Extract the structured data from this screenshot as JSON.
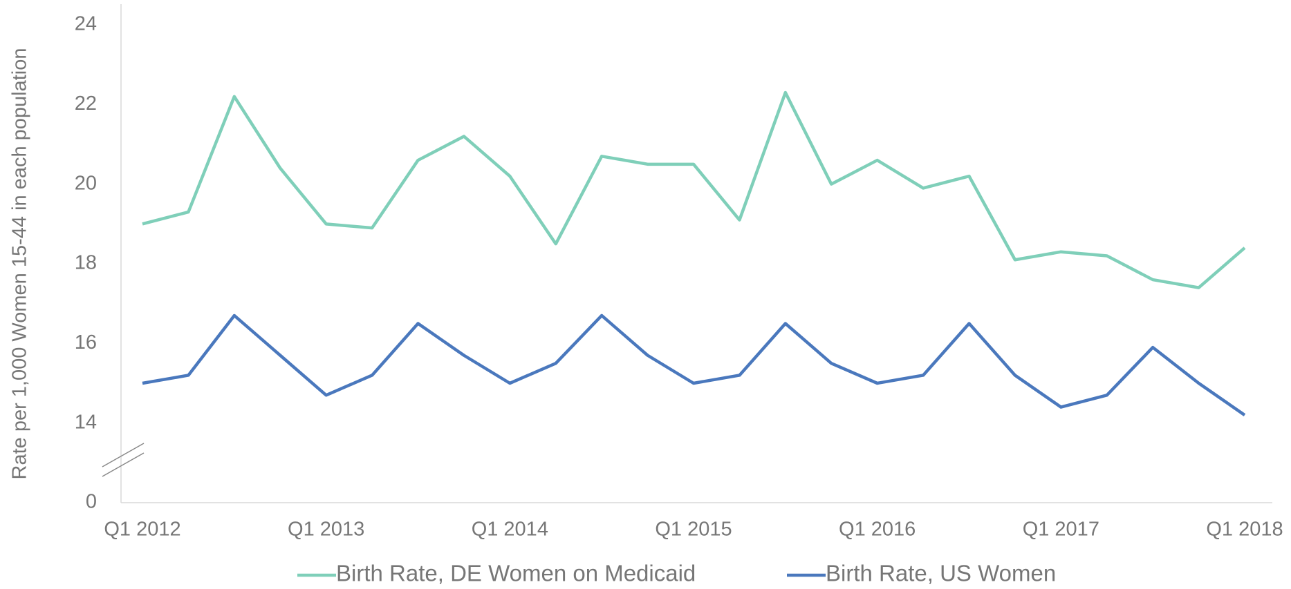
{
  "chart_data": {
    "type": "line",
    "y_axis_label": "Rate per 1,000 Women 15-44 in each population",
    "categories": [
      "Q1 2012",
      null,
      null,
      null,
      "Q1 2013",
      null,
      null,
      null,
      "Q1 2014",
      null,
      null,
      null,
      "Q1 2015",
      null,
      null,
      null,
      "Q1 2016",
      null,
      null,
      null,
      "Q1 2017",
      null,
      null,
      null,
      "Q1 2018"
    ],
    "series": [
      {
        "name": "Birth Rate, DE Women on Medicaid",
        "color": "#7fcfb9",
        "values": [
          19.0,
          19.3,
          22.2,
          20.4,
          19.0,
          18.9,
          20.6,
          21.2,
          20.2,
          18.5,
          20.7,
          20.5,
          20.5,
          19.1,
          22.3,
          20.0,
          20.6,
          19.9,
          20.2,
          18.1,
          18.3,
          18.2,
          17.6,
          17.4,
          18.4
        ]
      },
      {
        "name": "Birth Rate, US Women",
        "color": "#4a78bd",
        "values": [
          15.0,
          15.2,
          16.7,
          15.7,
          14.7,
          15.2,
          16.5,
          15.7,
          15.0,
          15.5,
          16.7,
          15.7,
          15.0,
          15.2,
          16.5,
          15.5,
          15.0,
          15.2,
          16.5,
          15.2,
          14.4,
          14.7,
          15.9,
          15.0,
          14.2
        ]
      }
    ],
    "ylim": [
      0,
      24
    ],
    "axis_break": [
      0,
      12
    ],
    "yticks": [
      0,
      14,
      16,
      18,
      20,
      22,
      24
    ],
    "legend": "bottom"
  }
}
